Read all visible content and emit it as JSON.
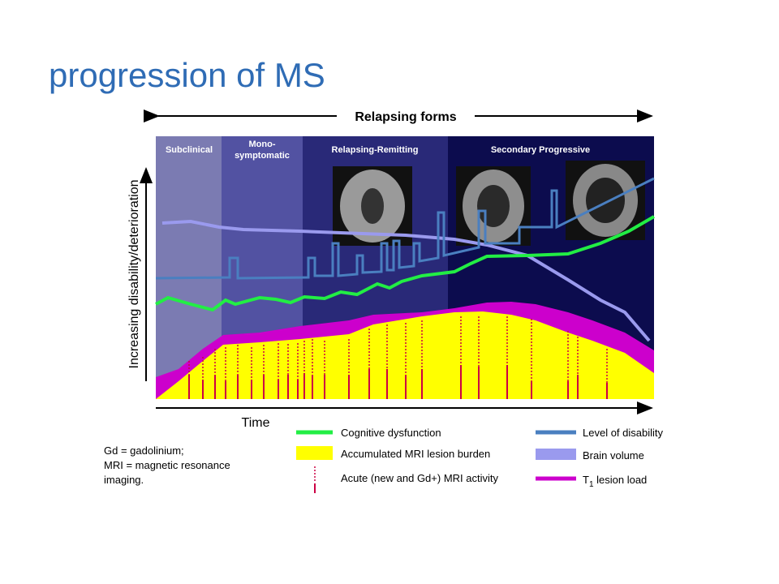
{
  "title": "progression of MS",
  "diagram": {
    "top_label": "Relapsing forms",
    "y_axis_label": "Increasing disability/deterioration",
    "x_axis_label": "Time",
    "phases": [
      [
        "Subclinical"
      ],
      [
        "Mono-",
        "symptomatic"
      ],
      [
        "Relapsing-Remitting"
      ],
      [
        "Secondary Progressive"
      ]
    ],
    "legend": [
      "Cognitive dysfunction",
      "Accumulated MRI lesion burden",
      "Acute (new and Gd+) MRI activity",
      "Level of disability",
      "Brain volume"
    ],
    "t1_legend": {
      "main": "T",
      "sub": "1",
      "rest": " lesion load"
    },
    "footnote": [
      "Gd = gadolinium;",
      "MRI = magnetic resonance",
      "imaging."
    ]
  }
}
